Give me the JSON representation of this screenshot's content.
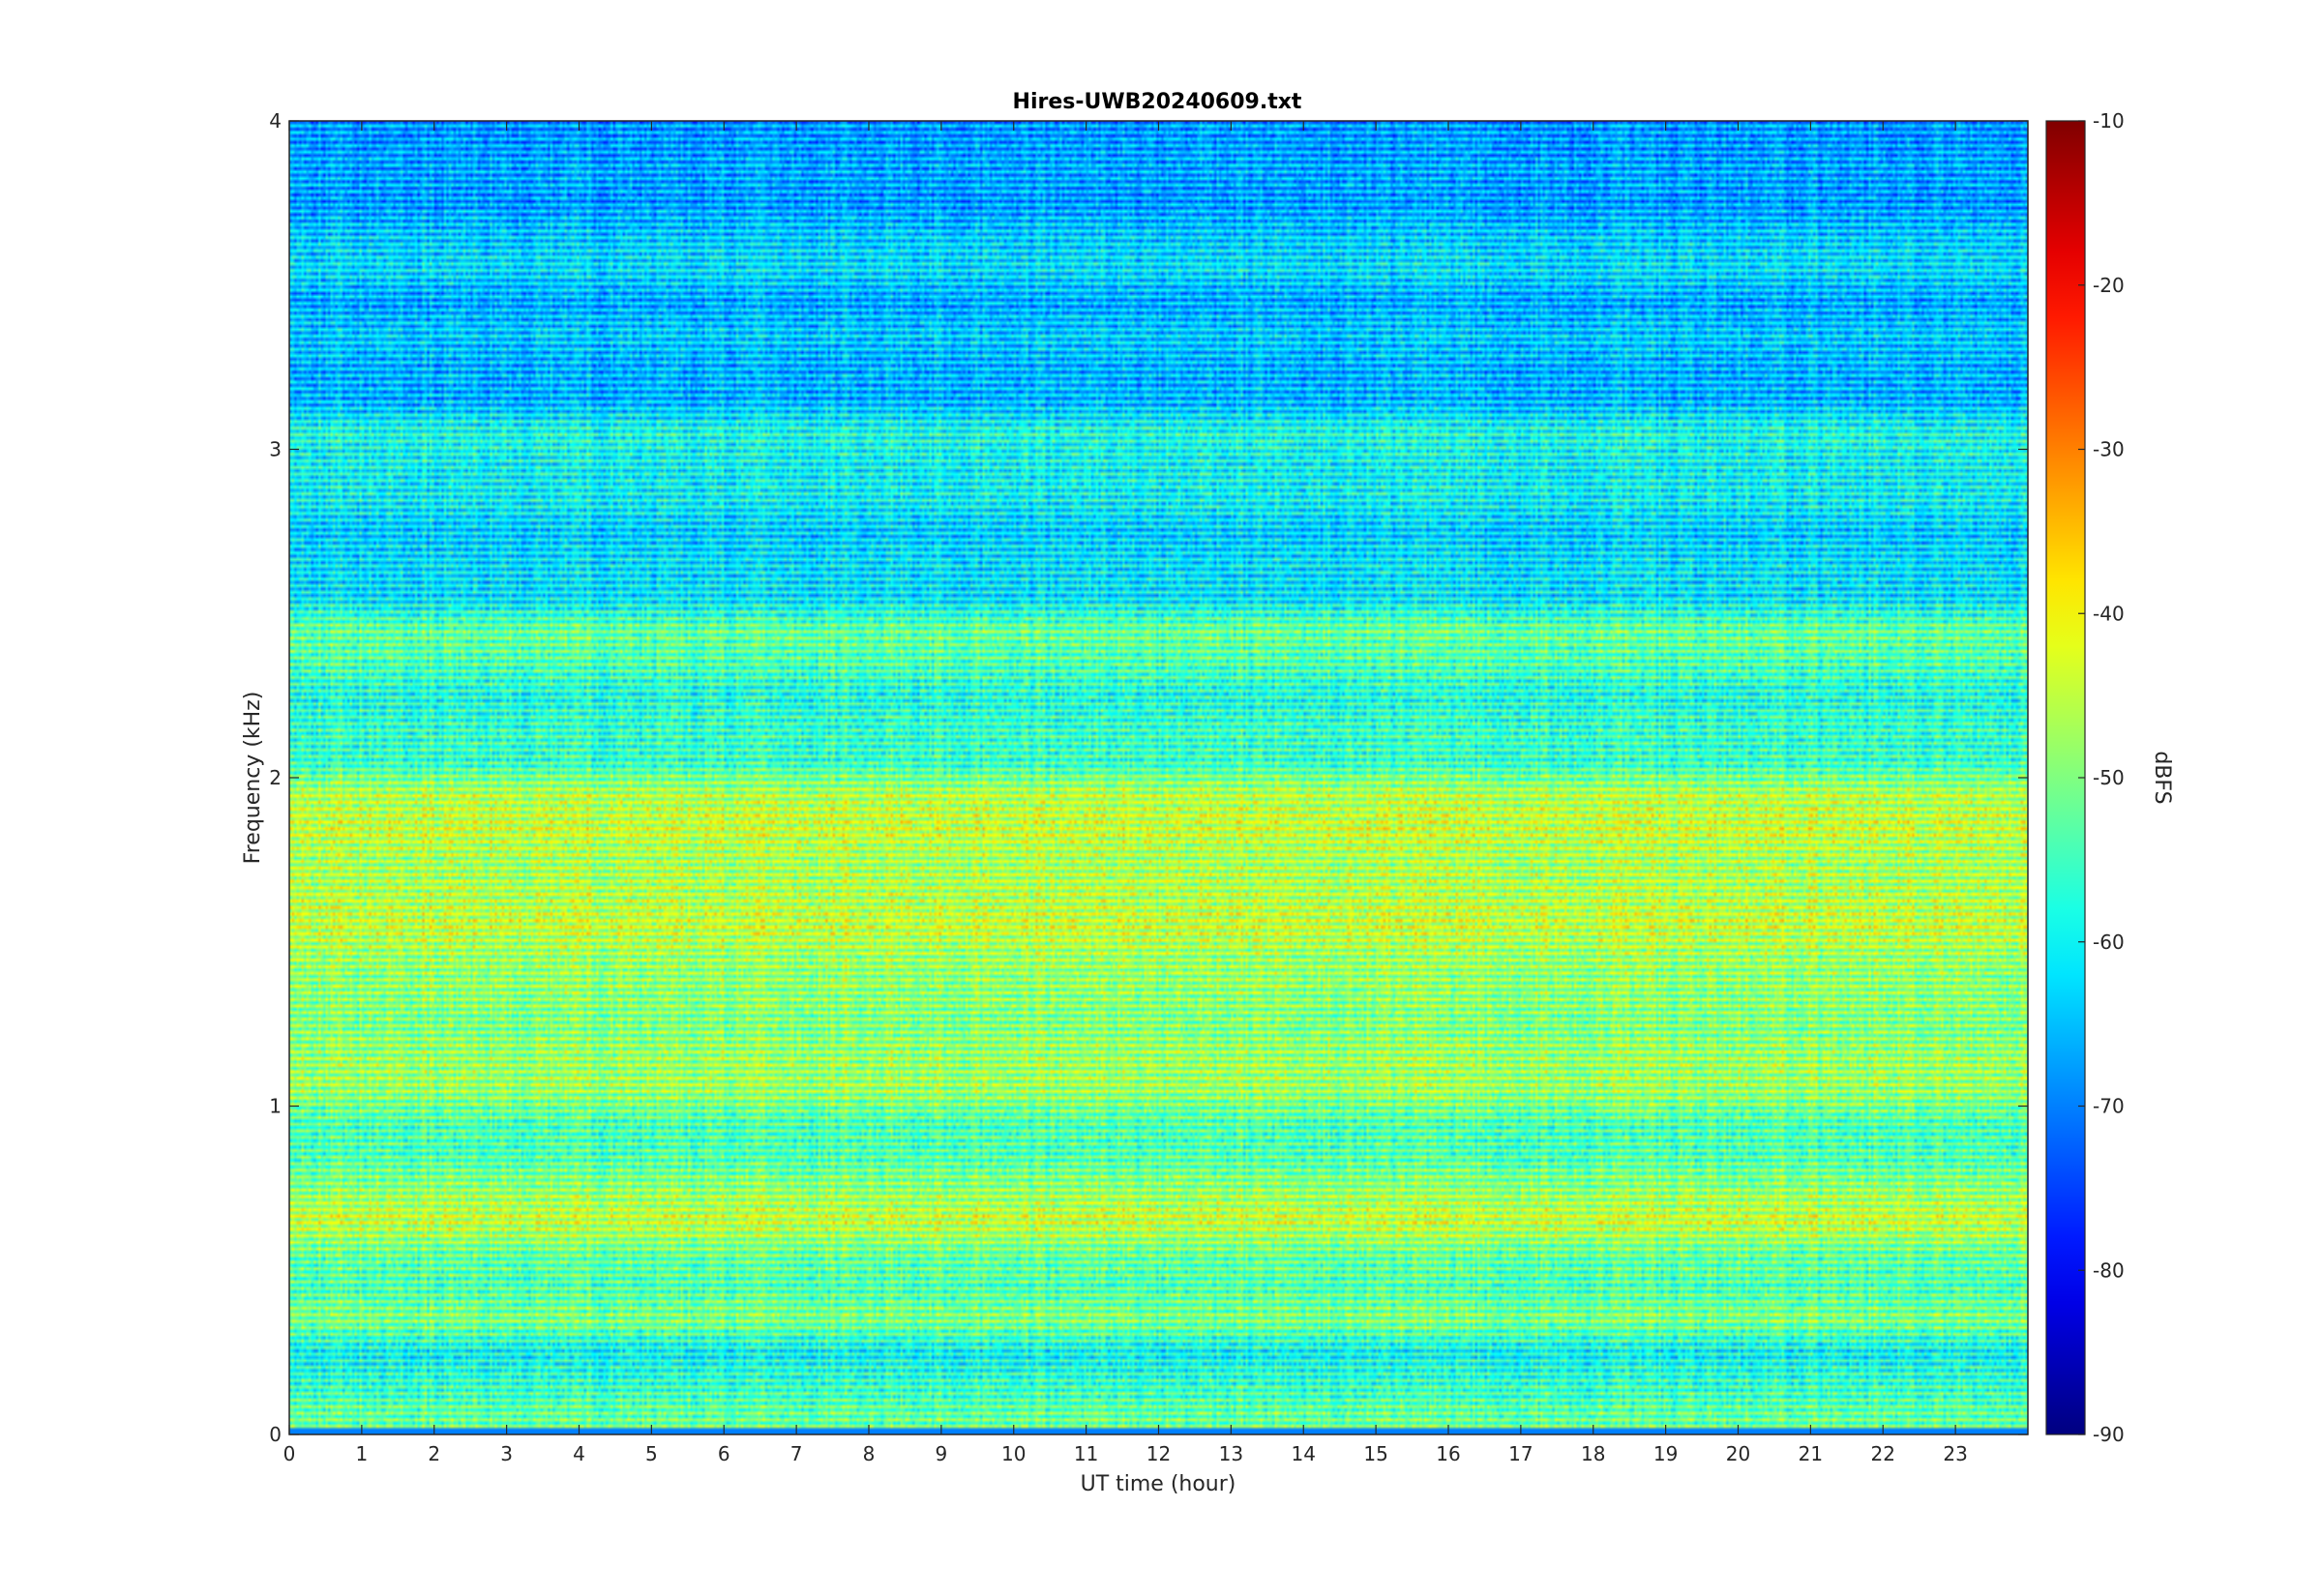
{
  "chart_data": {
    "type": "heatmap",
    "title": "Hires-UWB20240609.txt",
    "xlabel": "UT time (hour)",
    "ylabel": "Frequency (kHz)",
    "colorbar_label": "dBFS",
    "xlim": [
      0,
      24
    ],
    "ylim": [
      0,
      4
    ],
    "clim": [
      -90,
      -10
    ],
    "colormap": "jet",
    "x_ticks": [
      "0",
      "1",
      "2",
      "3",
      "4",
      "5",
      "6",
      "7",
      "8",
      "9",
      "10",
      "11",
      "12",
      "13",
      "14",
      "15",
      "16",
      "17",
      "18",
      "19",
      "20",
      "21",
      "22",
      "23"
    ],
    "y_ticks": [
      "0",
      "1",
      "2",
      "3",
      "4"
    ],
    "colorbar_ticks": [
      "-10",
      "-20",
      "-30",
      "-40",
      "-50",
      "-60",
      "-70",
      "-80",
      "-90"
    ],
    "grid": false,
    "frequency_band_levels_dbfs": [
      {
        "f_khz": 0.05,
        "dbfs": -48
      },
      {
        "f_khz": 0.15,
        "dbfs": -52
      },
      {
        "f_khz": 0.25,
        "dbfs": -56
      },
      {
        "f_khz": 0.35,
        "dbfs": -46
      },
      {
        "f_khz": 0.45,
        "dbfs": -50
      },
      {
        "f_khz": 0.55,
        "dbfs": -48
      },
      {
        "f_khz": 0.65,
        "dbfs": -40
      },
      {
        "f_khz": 0.75,
        "dbfs": -45
      },
      {
        "f_khz": 0.85,
        "dbfs": -50
      },
      {
        "f_khz": 0.95,
        "dbfs": -50
      },
      {
        "f_khz": 1.05,
        "dbfs": -44
      },
      {
        "f_khz": 1.15,
        "dbfs": -44
      },
      {
        "f_khz": 1.25,
        "dbfs": -46
      },
      {
        "f_khz": 1.35,
        "dbfs": -45
      },
      {
        "f_khz": 1.45,
        "dbfs": -44
      },
      {
        "f_khz": 1.55,
        "dbfs": -40
      },
      {
        "f_khz": 1.65,
        "dbfs": -42
      },
      {
        "f_khz": 1.75,
        "dbfs": -43
      },
      {
        "f_khz": 1.85,
        "dbfs": -40
      },
      {
        "f_khz": 1.95,
        "dbfs": -42
      },
      {
        "f_khz": 2.05,
        "dbfs": -52
      },
      {
        "f_khz": 2.15,
        "dbfs": -52
      },
      {
        "f_khz": 2.25,
        "dbfs": -54
      },
      {
        "f_khz": 2.35,
        "dbfs": -50
      },
      {
        "f_khz": 2.45,
        "dbfs": -48
      },
      {
        "f_khz": 2.55,
        "dbfs": -58
      },
      {
        "f_khz": 2.65,
        "dbfs": -58
      },
      {
        "f_khz": 2.75,
        "dbfs": -60
      },
      {
        "f_khz": 2.85,
        "dbfs": -56
      },
      {
        "f_khz": 2.95,
        "dbfs": -56
      },
      {
        "f_khz": 3.05,
        "dbfs": -54
      },
      {
        "f_khz": 3.15,
        "dbfs": -62
      },
      {
        "f_khz": 3.25,
        "dbfs": -62
      },
      {
        "f_khz": 3.35,
        "dbfs": -60
      },
      {
        "f_khz": 3.45,
        "dbfs": -63
      },
      {
        "f_khz": 3.55,
        "dbfs": -58
      },
      {
        "f_khz": 3.65,
        "dbfs": -60
      },
      {
        "f_khz": 3.75,
        "dbfs": -64
      },
      {
        "f_khz": 3.85,
        "dbfs": -63
      },
      {
        "f_khz": 3.95,
        "dbfs": -64
      }
    ]
  }
}
